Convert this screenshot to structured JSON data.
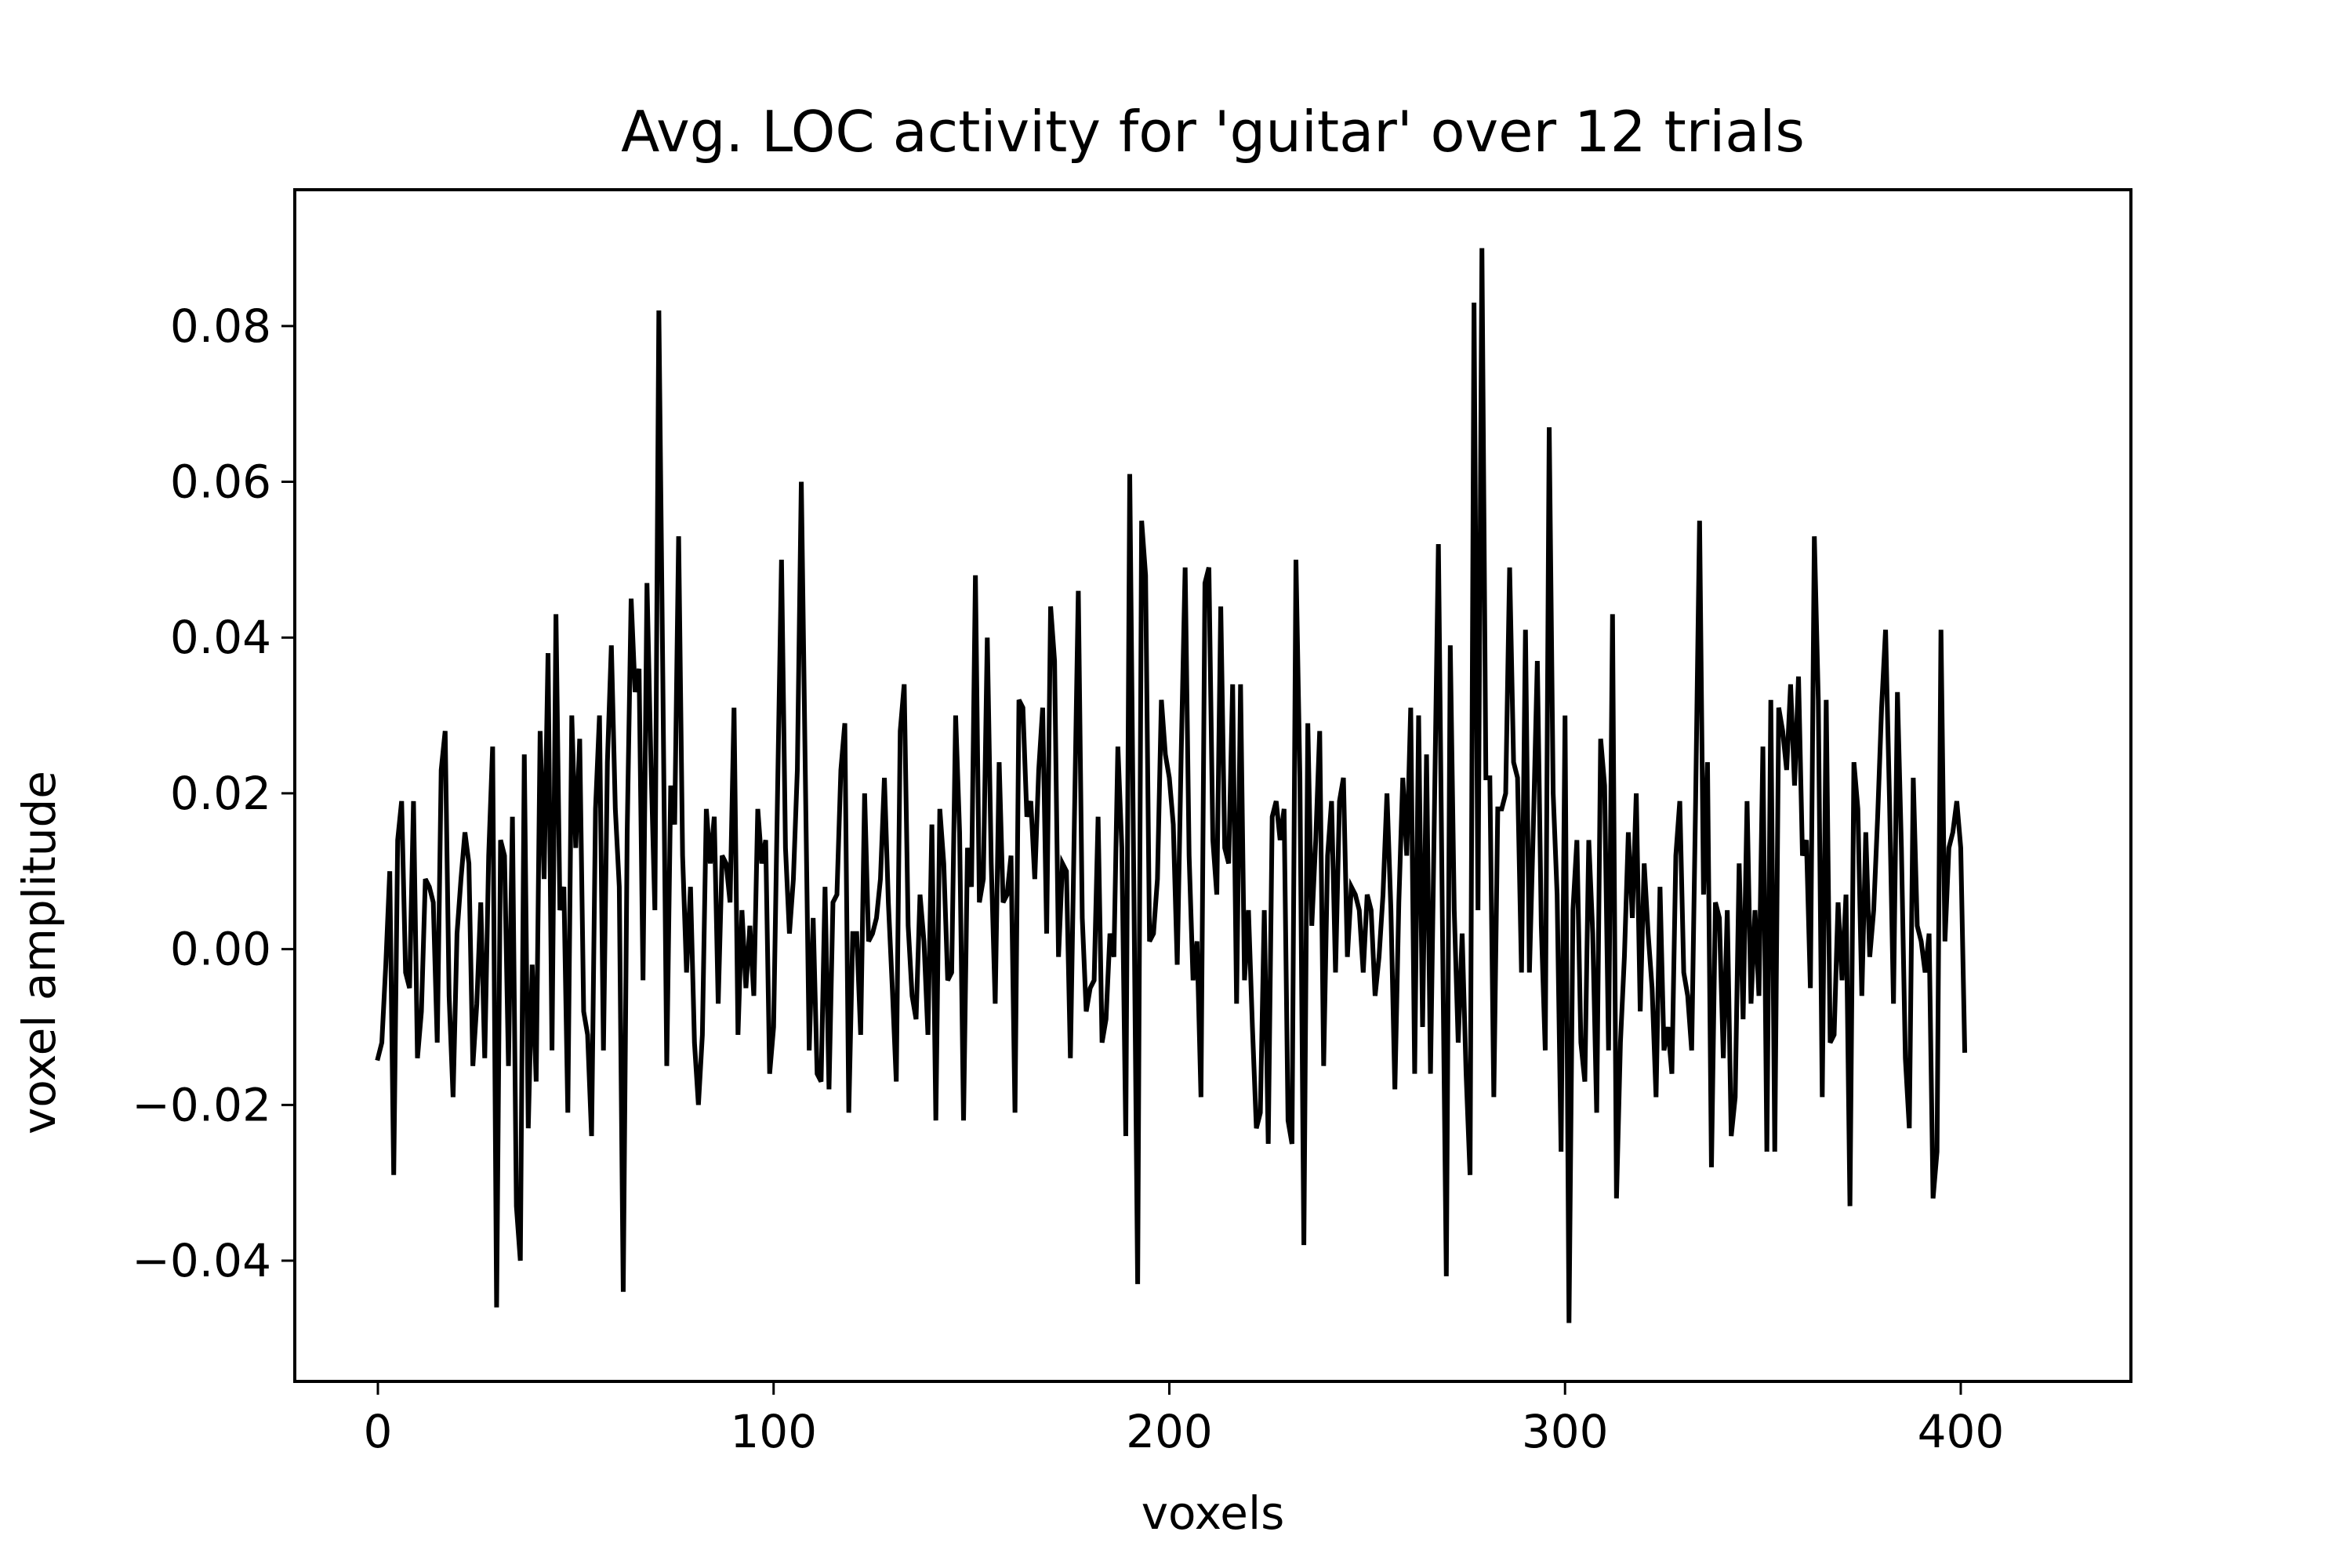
{
  "chart_data": {
    "type": "line",
    "title": "Avg. LOC activity for 'guitar' over 12 trials",
    "xlabel": "voxels",
    "ylabel": "voxel amplitude",
    "xlim": [
      -21,
      443
    ],
    "ylim": [
      -0.0555,
      0.0975
    ],
    "xticks": [
      0,
      100,
      200,
      300,
      400
    ],
    "yticks": [
      -0.04,
      -0.02,
      0.0,
      0.02,
      0.04,
      0.06,
      0.08
    ],
    "xtick_labels": [
      "0",
      "100",
      "200",
      "300",
      "400"
    ],
    "ytick_labels": [
      "−0.04",
      "−0.02",
      "0.00",
      "0.02",
      "0.04",
      "0.06",
      "0.08"
    ],
    "grid": false,
    "legend": "none",
    "line_color": "#000000",
    "series": [
      {
        "x_start": 0,
        "x_step": 1,
        "values": [
          -0.014,
          -0.012,
          -0.002,
          0.01,
          -0.029,
          0.014,
          0.019,
          -0.003,
          -0.005,
          0.019,
          -0.014,
          -0.008,
          0.009,
          0.008,
          0.006,
          -0.012,
          0.023,
          0.028,
          -0.006,
          -0.019,
          0.002,
          0.009,
          0.015,
          0.011,
          -0.015,
          -0.007,
          0.006,
          -0.014,
          0.012,
          0.026,
          -0.046,
          0.014,
          0.012,
          -0.015,
          0.017,
          -0.033,
          -0.04,
          0.025,
          -0.023,
          -0.002,
          -0.017,
          0.028,
          0.009,
          0.038,
          -0.013,
          0.043,
          0.005,
          0.008,
          -0.021,
          0.03,
          0.013,
          0.027,
          -0.008,
          -0.011,
          -0.024,
          0.018,
          0.03,
          -0.013,
          0.024,
          0.039,
          0.018,
          0.008,
          -0.044,
          0.015,
          0.045,
          0.033,
          0.036,
          -0.004,
          0.047,
          0.024,
          0.005,
          0.082,
          0.035,
          -0.015,
          0.021,
          0.016,
          0.053,
          0.012,
          -0.003,
          0.008,
          -0.012,
          -0.02,
          -0.011,
          0.018,
          0.011,
          0.017,
          -0.007,
          0.012,
          0.011,
          0.006,
          0.031,
          -0.011,
          0.005,
          -0.005,
          0.003,
          -0.006,
          0.018,
          0.011,
          0.014,
          -0.016,
          -0.01,
          0.02,
          0.05,
          0.013,
          0.002,
          0.009,
          0.023,
          0.06,
          0.023,
          -0.013,
          0.004,
          -0.016,
          -0.017,
          0.008,
          -0.018,
          0.006,
          0.007,
          0.023,
          0.029,
          -0.021,
          0.002,
          0.002,
          -0.011,
          0.02,
          0.001,
          0.002,
          0.004,
          0.009,
          0.022,
          0.006,
          -0.005,
          -0.017,
          0.028,
          0.034,
          0.003,
          -0.006,
          -0.009,
          0.007,
          0.001,
          -0.011,
          0.016,
          -0.022,
          0.018,
          0.011,
          -0.004,
          -0.003,
          0.03,
          0.015,
          -0.022,
          0.013,
          0.008,
          0.048,
          0.006,
          0.009,
          0.04,
          0.011,
          -0.007,
          0.024,
          0.006,
          0.007,
          0.012,
          -0.021,
          0.032,
          0.031,
          0.017,
          0.019,
          0.009,
          0.023,
          0.031,
          0.002,
          0.044,
          0.037,
          -0.001,
          0.011,
          0.01,
          -0.014,
          0.016,
          0.046,
          0.004,
          -0.008,
          -0.005,
          -0.004,
          0.017,
          -0.012,
          -0.009,
          0.002,
          -0.001,
          0.026,
          0.013,
          -0.024,
          0.061,
          0.01,
          -0.043,
          0.055,
          0.048,
          0.001,
          0.002,
          0.009,
          0.032,
          0.025,
          0.022,
          0.016,
          -0.002,
          0.025,
          0.049,
          0.012,
          -0.004,
          0.001,
          -0.019,
          0.047,
          0.049,
          0.014,
          0.007,
          0.044,
          0.013,
          0.011,
          0.034,
          -0.007,
          0.034,
          -0.004,
          0.005,
          -0.01,
          -0.023,
          -0.021,
          0.005,
          -0.025,
          0.017,
          0.019,
          0.014,
          0.018,
          -0.022,
          -0.025,
          0.05,
          0.022,
          -0.038,
          0.029,
          0.003,
          0.014,
          0.028,
          -0.015,
          0.012,
          0.019,
          -0.003,
          0.019,
          0.022,
          -0.001,
          0.008,
          0.007,
          0.005,
          -0.003,
          0.007,
          0.005,
          -0.006,
          -0.001,
          0.007,
          0.02,
          0.005,
          -0.018,
          0.006,
          0.022,
          0.012,
          0.031,
          -0.016,
          0.03,
          -0.01,
          0.025,
          -0.016,
          0.018,
          0.052,
          0.004,
          -0.042,
          0.039,
          0.005,
          -0.012,
          0.002,
          -0.016,
          -0.029,
          0.083,
          0.005,
          0.09,
          0.022,
          0.022,
          -0.019,
          0.018,
          0.018,
          0.02,
          0.049,
          0.024,
          0.022,
          -0.003,
          0.041,
          -0.003,
          0.016,
          0.037,
          0.003,
          -0.013,
          0.067,
          0.02,
          0.007,
          -0.026,
          0.03,
          -0.048,
          0.005,
          0.014,
          -0.012,
          -0.017,
          0.014,
          0.002,
          -0.021,
          0.027,
          0.021,
          -0.013,
          0.043,
          -0.032,
          -0.012,
          -0.001,
          0.015,
          0.004,
          0.02,
          -0.008,
          0.011,
          0.002,
          -0.005,
          -0.019,
          0.008,
          -0.013,
          -0.01,
          -0.016,
          0.012,
          0.019,
          -0.003,
          -0.006,
          -0.013,
          0.019,
          0.055,
          0.007,
          0.024,
          -0.028,
          0.006,
          0.004,
          -0.014,
          0.005,
          -0.024,
          -0.019,
          0.011,
          -0.009,
          0.019,
          -0.007,
          0.005,
          -0.006,
          0.026,
          -0.026,
          0.032,
          -0.026,
          0.031,
          0.028,
          0.023,
          0.034,
          0.021,
          0.035,
          0.012,
          0.014,
          -0.005,
          0.053,
          0.032,
          -0.019,
          0.032,
          -0.012,
          -0.011,
          0.006,
          -0.004,
          0.007,
          -0.033,
          0.024,
          0.018,
          -0.006,
          0.015,
          -0.001,
          0.005,
          0.017,
          0.031,
          0.041,
          0.019,
          -0.007,
          0.033,
          0.013,
          -0.014,
          -0.023,
          0.022,
          0.003,
          0.001,
          -0.003,
          0.002,
          -0.032,
          -0.026,
          0.041,
          0.001,
          0.013,
          0.015,
          0.019,
          0.013,
          -0.013
        ]
      }
    ]
  }
}
